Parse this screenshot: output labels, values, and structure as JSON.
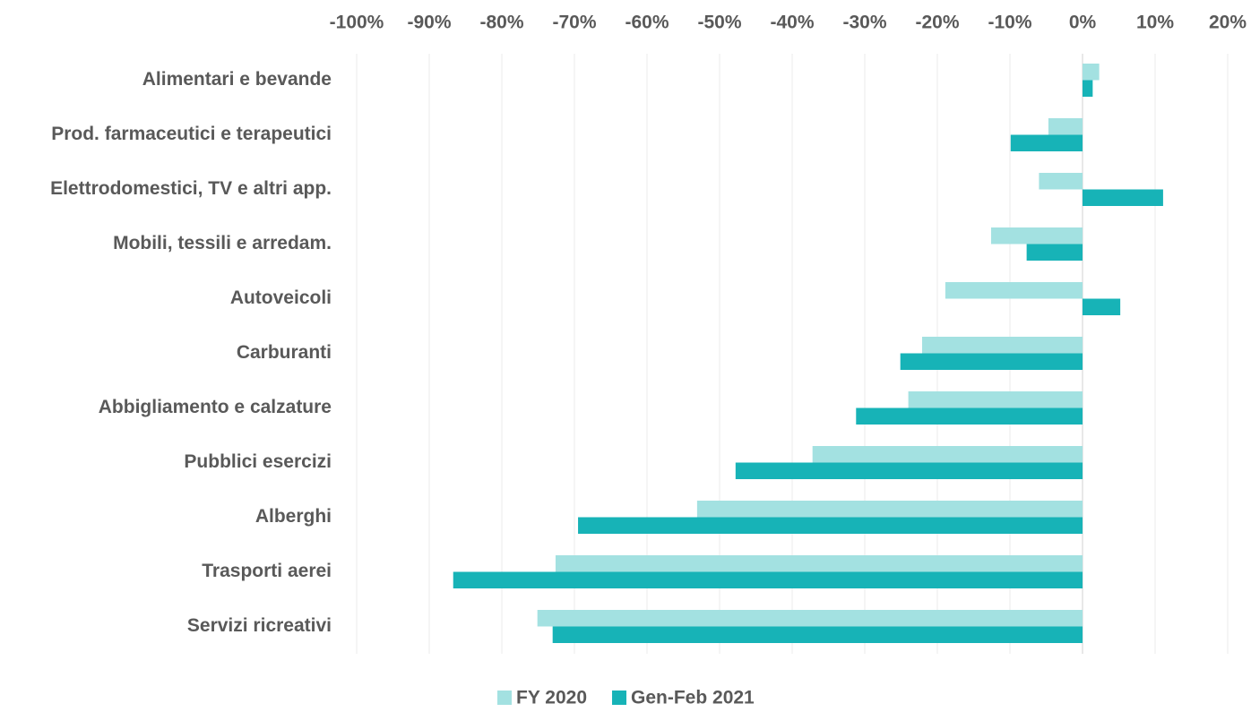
{
  "chart_data": {
    "type": "hbar",
    "categories": [
      "Alimentari e bevande",
      "Prod. farmaceutici e terapeutici",
      "Elettrodomestici, TV e altri app.",
      "Mobili, tessili e arredam.",
      "Autoveicoli",
      "Carburanti",
      "Abbigliamento e calzature",
      "Pubblici esercizi",
      "Alberghi",
      "Trasporti aerei",
      "Servizi ricreativi"
    ],
    "series": [
      {
        "name": "FY 2020",
        "color": "#a3e1e1",
        "values": [
          2.3,
          -4.7,
          -6.0,
          -12.6,
          -18.9,
          -22.1,
          -24.0,
          -37.2,
          -53.1,
          -72.6,
          -75.1
        ]
      },
      {
        "name": "Gen-Feb 2021",
        "color": "#17b3b7",
        "values": [
          1.4,
          -9.9,
          11.1,
          -7.7,
          5.2,
          -25.1,
          -31.2,
          -47.8,
          -69.5,
          -86.7,
          -73.0
        ]
      }
    ],
    "xlim": [
      -100,
      20
    ],
    "xticks": [
      {
        "value": -100,
        "label": "-100%"
      },
      {
        "value": -90,
        "label": "-90%"
      },
      {
        "value": -80,
        "label": "-80%"
      },
      {
        "value": -70,
        "label": "-70%"
      },
      {
        "value": -60,
        "label": "-60%"
      },
      {
        "value": -50,
        "label": "-50%"
      },
      {
        "value": -40,
        "label": "-40%"
      },
      {
        "value": -30,
        "label": "-30%"
      },
      {
        "value": -20,
        "label": "-20%"
      },
      {
        "value": -10,
        "label": "-10%"
      },
      {
        "value": 0,
        "label": "0%"
      },
      {
        "value": 10,
        "label": "10%"
      },
      {
        "value": 20,
        "label": "20%"
      }
    ],
    "grid": true,
    "legend": "bottom"
  }
}
